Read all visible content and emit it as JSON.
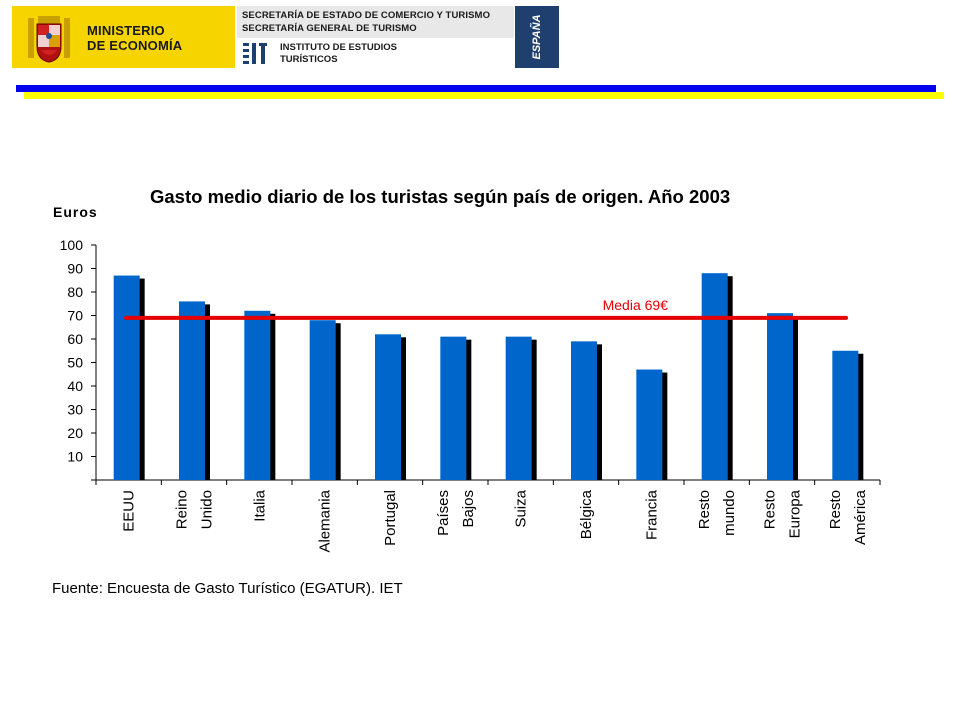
{
  "header": {
    "ministry_line1": "MINISTERIO",
    "ministry_line2": "DE ECONOMÍA",
    "secretaria_line1": "SECRETARÍA DE ESTADO DE COMERCIO Y TURISMO",
    "secretaria_line2": "SECRETARÍA GENERAL DE TURISMO",
    "institute_line1": "INSTITUTO DE ESTUDIOS",
    "institute_line2": "TURÍSTICOS",
    "country": "ESPAÑA",
    "colors": {
      "ministry_bg": "#f6d400",
      "stripe_blue": "#0000ee",
      "stripe_yellow": "#ffff00",
      "espana_bg": "#1f3f6e"
    }
  },
  "chart_data": {
    "type": "bar",
    "title": "Gasto medio diario de los turistas según país de origen. Año 2003",
    "ylabel": "Euros",
    "xlabel": "",
    "ylim": [
      0,
      100
    ],
    "yticks": [
      10,
      20,
      30,
      40,
      50,
      60,
      70,
      80,
      90,
      100
    ],
    "categories": [
      [
        "EEUU"
      ],
      [
        "Reino",
        "Unido"
      ],
      [
        "Italia"
      ],
      [
        "Alemania"
      ],
      [
        "Portugal"
      ],
      [
        "Países",
        "Bajos"
      ],
      [
        "Suiza"
      ],
      [
        "Bélgica"
      ],
      [
        "Francia"
      ],
      [
        "Resto",
        "mundo"
      ],
      [
        "Resto",
        "Europa"
      ],
      [
        "Resto",
        "América"
      ]
    ],
    "values": [
      87,
      76,
      72,
      68,
      62,
      61,
      61,
      59,
      47,
      88,
      71,
      55
    ],
    "reference_line": {
      "label": "Media 69€",
      "value": 69,
      "color": "#e60000"
    },
    "bar_color": "#0066cc",
    "shadow_color": "#000000",
    "grid": false
  },
  "source_note": "Fuente: Encuesta de Gasto Turístico (EGATUR). IET"
}
